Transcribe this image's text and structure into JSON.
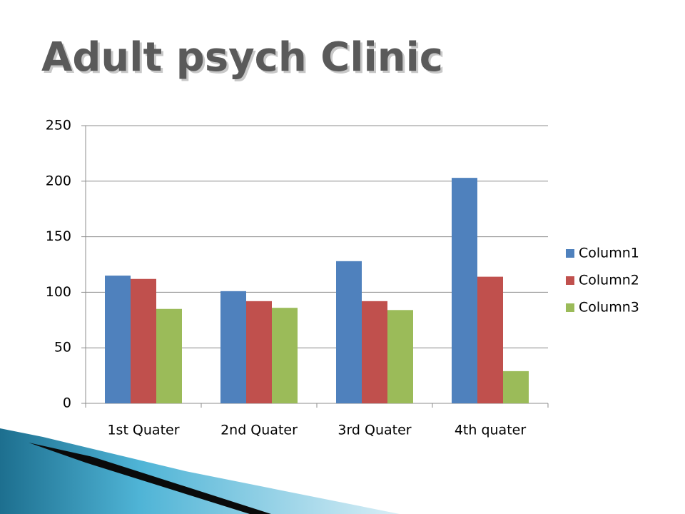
{
  "chart_data": {
    "type": "bar",
    "title": "Adult psych Clinic",
    "categories": [
      "1st Quater",
      "2nd Quater",
      "3rd Quater",
      "4th quater"
    ],
    "series": [
      {
        "name": "Column1",
        "color": "#4f81bd",
        "values": [
          115,
          101,
          128,
          203
        ]
      },
      {
        "name": "Column2",
        "color": "#c0504d",
        "values": [
          112,
          92,
          92,
          114
        ]
      },
      {
        "name": "Column3",
        "color": "#9bbb59",
        "values": [
          85,
          86,
          84,
          29
        ]
      }
    ],
    "ylim": [
      0,
      250
    ],
    "yticks": [
      0,
      50,
      100,
      150,
      200,
      250
    ],
    "grid": true,
    "legend": "right"
  }
}
